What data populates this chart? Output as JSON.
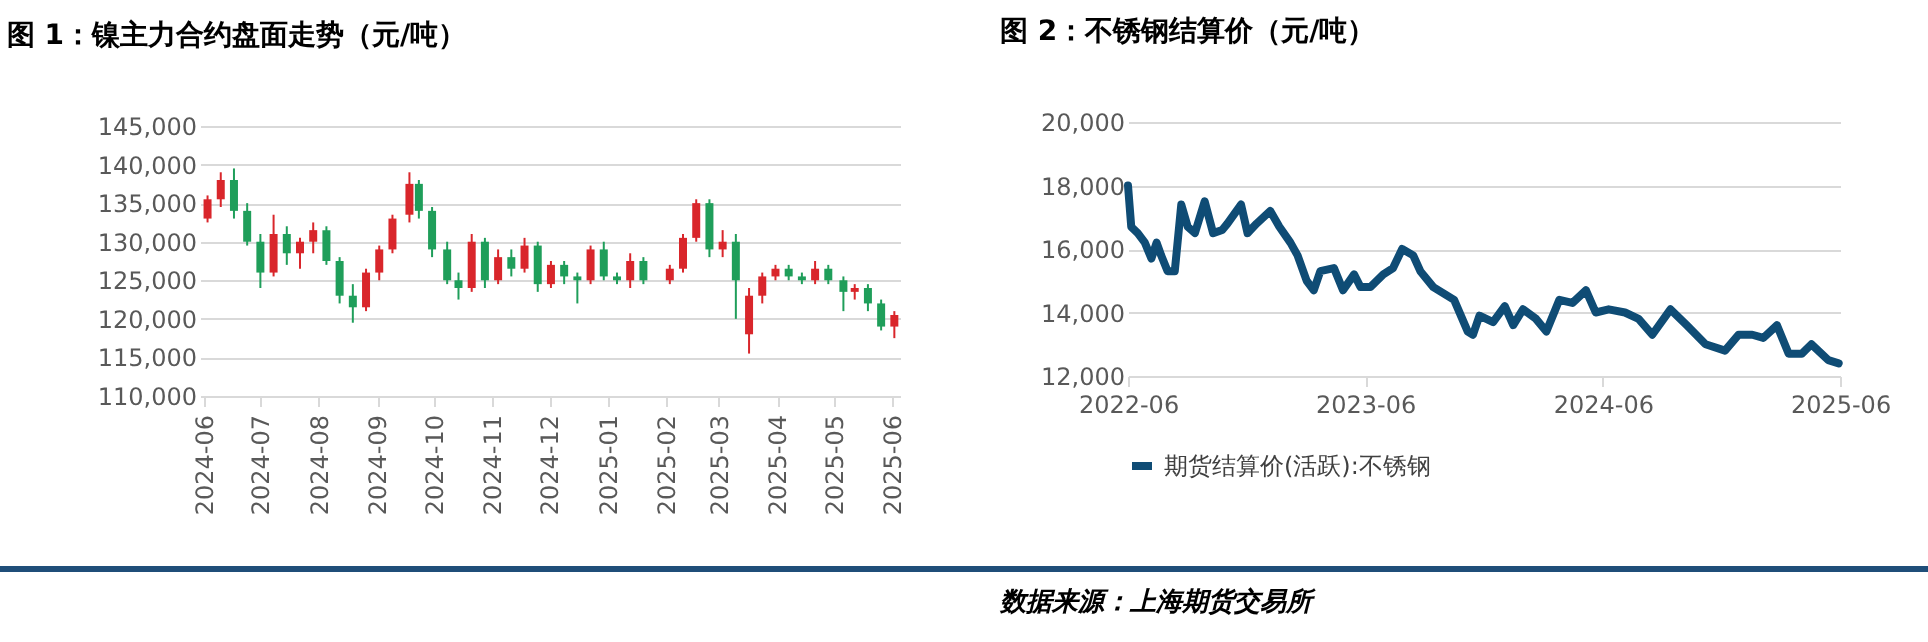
{
  "chart_data": [
    {
      "type": "candlestick",
      "title": "图 1：镍主力合约盘面走势（元/吨）",
      "x": [
        "2024-06-03",
        "2024-06-10",
        "2024-06-17",
        "2024-06-24",
        "2024-07-01",
        "2024-07-08",
        "2024-07-15",
        "2024-07-22",
        "2024-07-29",
        "2024-08-05",
        "2024-08-12",
        "2024-08-19",
        "2024-08-26",
        "2024-09-02",
        "2024-09-09",
        "2024-09-18",
        "2024-09-23",
        "2024-09-30",
        "2024-10-08",
        "2024-10-14",
        "2024-10-21",
        "2024-10-28",
        "2024-11-04",
        "2024-11-11",
        "2024-11-18",
        "2024-11-25",
        "2024-12-02",
        "2024-12-09",
        "2024-12-16",
        "2024-12-23",
        "2024-12-30",
        "2025-01-06",
        "2025-01-13",
        "2025-01-20",
        "2025-02-03",
        "2025-02-10",
        "2025-02-17",
        "2025-02-24",
        "2025-03-03",
        "2025-03-10",
        "2025-03-17",
        "2025-03-24",
        "2025-03-31",
        "2025-04-07",
        "2025-04-14",
        "2025-04-21",
        "2025-04-28",
        "2025-05-06",
        "2025-05-12",
        "2025-05-19",
        "2025-05-26",
        "2025-06-02"
      ],
      "ohlc": [
        [
          133000,
          136000,
          132500,
          135500
        ],
        [
          135500,
          139000,
          134500,
          138000
        ],
        [
          138000,
          139500,
          133000,
          134000
        ],
        [
          134000,
          135000,
          129500,
          130000
        ],
        [
          130000,
          131000,
          124000,
          126000
        ],
        [
          126000,
          133500,
          125500,
          131000
        ],
        [
          131000,
          132000,
          127000,
          128500
        ],
        [
          128500,
          130500,
          126500,
          130000
        ],
        [
          130000,
          132500,
          128500,
          131500
        ],
        [
          131500,
          132000,
          127000,
          127500
        ],
        [
          127500,
          128000,
          122000,
          123000
        ],
        [
          123000,
          124500,
          119500,
          121500
        ],
        [
          121500,
          126500,
          121000,
          126000
        ],
        [
          126000,
          129500,
          125000,
          129000
        ],
        [
          129000,
          133500,
          128500,
          133000
        ],
        [
          133500,
          139000,
          132500,
          137500
        ],
        [
          137500,
          138000,
          133000,
          134000
        ],
        [
          134000,
          134500,
          128000,
          129000
        ],
        [
          129000,
          130000,
          124500,
          125000
        ],
        [
          125000,
          126000,
          122500,
          124000
        ],
        [
          124000,
          131000,
          123500,
          130000
        ],
        [
          130000,
          130500,
          124000,
          125000
        ],
        [
          125000,
          129000,
          124500,
          128000
        ],
        [
          128000,
          129000,
          125500,
          126500
        ],
        [
          126500,
          130500,
          126000,
          129500
        ],
        [
          129500,
          130000,
          123500,
          124500
        ],
        [
          124500,
          127500,
          124000,
          127000
        ],
        [
          127000,
          127500,
          124500,
          125500
        ],
        [
          125500,
          126000,
          122000,
          125000
        ],
        [
          125000,
          129500,
          124500,
          129000
        ],
        [
          129000,
          130000,
          125000,
          125500
        ],
        [
          125500,
          126000,
          124500,
          125000
        ],
        [
          125000,
          128500,
          124000,
          127500
        ],
        [
          127500,
          128000,
          124500,
          125000
        ],
        [
          125000,
          127000,
          124500,
          126500
        ],
        [
          126500,
          131000,
          126000,
          130500
        ],
        [
          130500,
          135500,
          130000,
          135000
        ],
        [
          135000,
          135500,
          128000,
          129000
        ],
        [
          129000,
          131500,
          128000,
          130000
        ],
        [
          130000,
          131000,
          120000,
          125000
        ],
        [
          118000,
          124000,
          115500,
          123000
        ],
        [
          123000,
          126000,
          122000,
          125500
        ],
        [
          125500,
          127000,
          125000,
          126500
        ],
        [
          126500,
          127000,
          125000,
          125500
        ],
        [
          125500,
          126000,
          124500,
          125000
        ],
        [
          125000,
          127500,
          124500,
          126500
        ],
        [
          126500,
          127000,
          124500,
          125000
        ],
        [
          125000,
          125500,
          121000,
          123500
        ],
        [
          123500,
          124500,
          122500,
          124000
        ],
        [
          124000,
          124500,
          121000,
          122000
        ],
        [
          122000,
          122500,
          118500,
          119000
        ],
        [
          119000,
          121000,
          117500,
          120500
        ]
      ],
      "colors": [
        "#d9262b",
        "#d9262b",
        "#1f9e5a",
        "#1f9e5a",
        "#1f9e5a",
        "#d9262b",
        "#1f9e5a",
        "#d9262b",
        "#d9262b",
        "#1f9e5a",
        "#1f9e5a",
        "#1f9e5a",
        "#d9262b",
        "#d9262b",
        "#d9262b",
        "#d9262b",
        "#1f9e5a",
        "#1f9e5a",
        "#1f9e5a",
        "#1f9e5a",
        "#d9262b",
        "#1f9e5a",
        "#d9262b",
        "#1f9e5a",
        "#d9262b",
        "#1f9e5a",
        "#d9262b",
        "#1f9e5a",
        "#1f9e5a",
        "#d9262b",
        "#1f9e5a",
        "#1f9e5a",
        "#d9262b",
        "#1f9e5a",
        "#d9262b",
        "#d9262b",
        "#d9262b",
        "#1f9e5a",
        "#d9262b",
        "#1f9e5a",
        "#d9262b",
        "#d9262b",
        "#d9262b",
        "#1f9e5a",
        "#1f9e5a",
        "#d9262b",
        "#1f9e5a",
        "#1f9e5a",
        "#d9262b",
        "#1f9e5a",
        "#1f9e5a",
        "#d9262b"
      ],
      "xlim": [
        "2024-05-30",
        "2025-06-05"
      ],
      "xticks": [
        "2024-06",
        "2024-07",
        "2024-08",
        "2024-09",
        "2024-10",
        "2024-11",
        "2024-12",
        "2025-01",
        "2025-02",
        "2025-03",
        "2025-04",
        "2025-05",
        "2025-06"
      ],
      "ylim": [
        110000,
        145000
      ],
      "yticks": [
        {
          "value": 110000,
          "label": "110,000"
        },
        {
          "value": 115000,
          "label": "115,000"
        },
        {
          "value": 120000,
          "label": "120,000"
        },
        {
          "value": 125000,
          "label": "125,000"
        },
        {
          "value": 130000,
          "label": "130,000"
        },
        {
          "value": 135000,
          "label": "135,000"
        },
        {
          "value": 140000,
          "label": "140,000"
        },
        {
          "value": 145000,
          "label": "145,000"
        }
      ],
      "grid": "y"
    },
    {
      "type": "line",
      "title": "图 2：不锈钢结算价（元/吨）",
      "x": [
        "2022-06-01",
        "2022-06-06",
        "2022-06-16",
        "2022-06-27",
        "2022-07-07",
        "2022-07-15",
        "2022-07-22",
        "2022-08-01",
        "2022-08-12",
        "2022-08-22",
        "2022-09-01",
        "2022-09-12",
        "2022-09-27",
        "2022-10-10",
        "2022-10-24",
        "2022-11-01",
        "2022-11-22",
        "2022-12-02",
        "2022-12-16",
        "2023-01-06",
        "2023-01-20",
        "2023-02-06",
        "2023-02-17",
        "2023-03-03",
        "2023-03-14",
        "2023-03-24",
        "2023-04-14",
        "2023-04-28",
        "2023-05-15",
        "2023-05-25",
        "2023-06-09",
        "2023-06-29",
        "2023-07-14",
        "2023-07-28",
        "2023-08-14",
        "2023-08-25",
        "2023-09-14",
        "2023-10-16",
        "2023-11-06",
        "2023-11-14",
        "2023-11-24",
        "2023-12-15",
        "2024-01-02",
        "2024-01-15",
        "2024-01-30",
        "2024-02-19",
        "2024-03-06",
        "2024-03-26",
        "2024-04-15",
        "2024-05-06",
        "2024-05-21",
        "2024-06-10",
        "2024-07-05",
        "2024-07-26",
        "2024-08-16",
        "2024-09-13",
        "2024-10-08",
        "2024-11-06",
        "2024-12-06",
        "2024-12-27",
        "2025-01-17",
        "2025-02-03",
        "2025-02-24",
        "2025-03-14",
        "2025-04-03",
        "2025-04-18",
        "2025-05-14",
        "2025-05-30"
      ],
      "series": [
        {
          "name": "期货结算价(活跃):不锈钢",
          "color": "#0f4c75",
          "values": [
            18000,
            16700,
            16500,
            16200,
            15700,
            16200,
            15800,
            15300,
            15300,
            17400,
            16700,
            16500,
            17500,
            16500,
            16600,
            16800,
            17400,
            16500,
            16800,
            17200,
            16700,
            16200,
            15800,
            15000,
            14700,
            15300,
            15400,
            14700,
            15200,
            14800,
            14800,
            15200,
            15400,
            16000,
            15800,
            15300,
            14800,
            14400,
            13400,
            13300,
            13900,
            13700,
            14200,
            13600,
            14100,
            13800,
            13400,
            14400,
            14300,
            14700,
            14000,
            14100,
            14000,
            13800,
            13300,
            14100,
            13600,
            13000,
            12800,
            13300,
            13300,
            13200,
            13600,
            12700,
            12700,
            13000,
            12500,
            12400
          ]
        }
      ],
      "xlim": [
        "2022-06-01",
        "2025-06-01"
      ],
      "xticks": [
        "2022-06",
        "2023-06",
        "2024-06",
        "2025-06"
      ],
      "ylim": [
        12000,
        20000
      ],
      "yticks": [
        {
          "value": 12000,
          "label": "12,000"
        },
        {
          "value": 14000,
          "label": "14,000"
        },
        {
          "value": 16000,
          "label": "16,000"
        },
        {
          "value": 18000,
          "label": "18,000"
        },
        {
          "value": 20000,
          "label": "20,000"
        }
      ],
      "grid": "y",
      "legend": "bottom",
      "marker": "none",
      "line_style": "solid",
      "annotations": [
        "数据来源：上海期货交易所"
      ]
    }
  ]
}
